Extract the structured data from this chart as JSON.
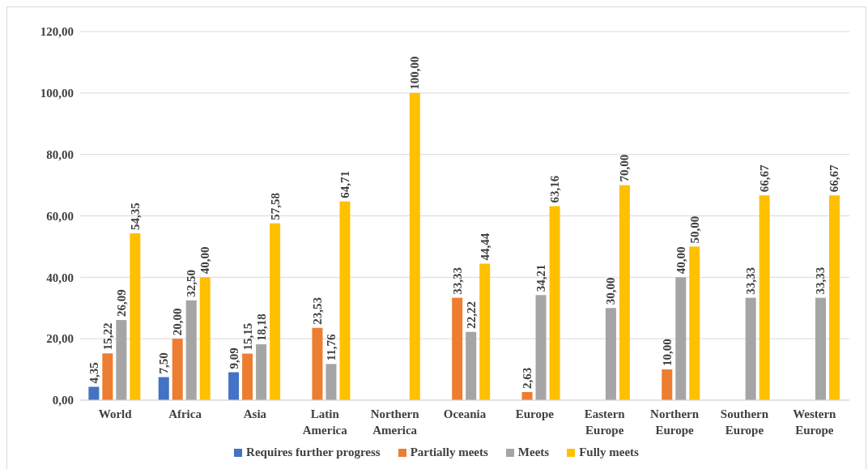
{
  "chart_data": {
    "type": "bar",
    "categories": [
      "World",
      "Africa",
      "Asia",
      "Latin America",
      "Northern America",
      "Oceania",
      "Europe",
      "Eastern Europe",
      "Northern Europe",
      "Southern Europe",
      "Western Europe"
    ],
    "series": [
      {
        "name": "Requires further progress",
        "color": "#4472c4",
        "values": [
          4.35,
          7.5,
          9.09,
          null,
          null,
          null,
          null,
          null,
          null,
          null,
          null
        ],
        "value_labels": [
          "4,35",
          "7,50",
          "9,09",
          null,
          null,
          null,
          null,
          null,
          null,
          null,
          null
        ]
      },
      {
        "name": "Partially meets",
        "color": "#ed7d31",
        "values": [
          15.22,
          20.0,
          15.15,
          23.53,
          null,
          33.33,
          2.63,
          null,
          10.0,
          null,
          null
        ],
        "value_labels": [
          "15,22",
          "20,00",
          "15,15",
          "23,53",
          null,
          "33,33",
          "2,63",
          null,
          "10,00",
          null,
          null
        ]
      },
      {
        "name": "Meets",
        "color": "#a5a5a5",
        "values": [
          26.09,
          32.5,
          18.18,
          11.76,
          null,
          22.22,
          34.21,
          30.0,
          40.0,
          33.33,
          33.33
        ],
        "value_labels": [
          "26,09",
          "32,50",
          "18,18",
          "11,76",
          null,
          "22,22",
          "34,21",
          "30,00",
          "40,00",
          "33,33",
          "33,33"
        ]
      },
      {
        "name": "Fully meets",
        "color": "#ffc000",
        "values": [
          54.35,
          40.0,
          57.58,
          64.71,
          100.0,
          44.44,
          63.16,
          70.0,
          50.0,
          66.67,
          66.67
        ],
        "value_labels": [
          "54,35",
          "40,00",
          "57,58",
          "64,71",
          "100,00",
          "44,44",
          "63,16",
          "70,00",
          "50,00",
          "66,67",
          "66,67"
        ]
      }
    ],
    "ylim": [
      0,
      120
    ],
    "yticks": [
      {
        "value": 0,
        "label": "0,00"
      },
      {
        "value": 20,
        "label": "20,00"
      },
      {
        "value": 40,
        "label": "40,00"
      },
      {
        "value": 60,
        "label": "60,00"
      },
      {
        "value": 80,
        "label": "80,00"
      },
      {
        "value": 100,
        "label": "100,00"
      },
      {
        "value": 120,
        "label": "120,00"
      }
    ],
    "grid": "y",
    "legend": "bottom"
  }
}
